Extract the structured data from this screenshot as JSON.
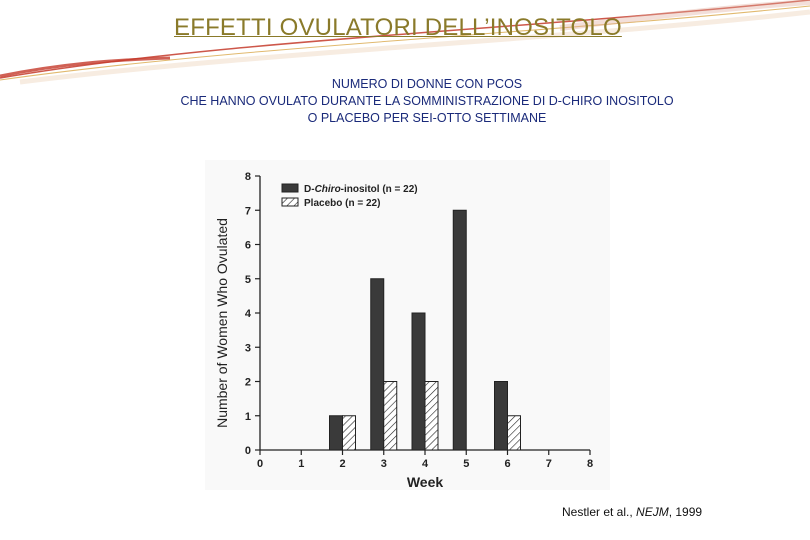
{
  "slide": {
    "title": "EFFETTI OVULATORI DELL’INOSITOLO",
    "subtitle_lines": [
      "NUMERO DI DONNE CON PCOS",
      "CHE HANNO OVULATO DURANTE LA SOMMINISTRAZIONE DI D-CHIRO INOSITOLO",
      "O PLACEBO PER SEI-OTTO SETTIMANE"
    ],
    "citation": {
      "authors": "Nestler et al., ",
      "journal": "NEJM",
      "year": ", 1999"
    }
  },
  "colors": {
    "title": "#8a7a2a",
    "subtitle": "#1a2a7a",
    "bar_dark": "#3a3a3a",
    "swoosh": "#c43a2a"
  },
  "chart_data": {
    "type": "bar",
    "xlabel": "Week",
    "ylabel": "Number of Women Who Ovulated",
    "categories": [
      "0",
      "1",
      "2",
      "3",
      "4",
      "5",
      "6",
      "7",
      "8"
    ],
    "ylim": [
      0,
      8
    ],
    "yticks": [
      "0",
      "1",
      "2",
      "3",
      "4",
      "5",
      "6",
      "7",
      "8"
    ],
    "grid": false,
    "legend_position": "top-left",
    "legend_entries": [
      {
        "prefix": "D-",
        "italic": "Chiro",
        "suffix": "-inositol (n = 22)"
      },
      {
        "prefix": "Placebo (n = 22)",
        "italic": "",
        "suffix": ""
      }
    ],
    "series": [
      {
        "name": "D-Chiro-inositol (n = 22)",
        "fill": "dark",
        "values": [
          0,
          0,
          1,
          5,
          4,
          7,
          2,
          0,
          0
        ]
      },
      {
        "name": "Placebo (n = 22)",
        "fill": "hatched",
        "values": [
          0,
          0,
          1,
          2,
          2,
          0,
          1,
          0,
          0
        ]
      }
    ]
  }
}
